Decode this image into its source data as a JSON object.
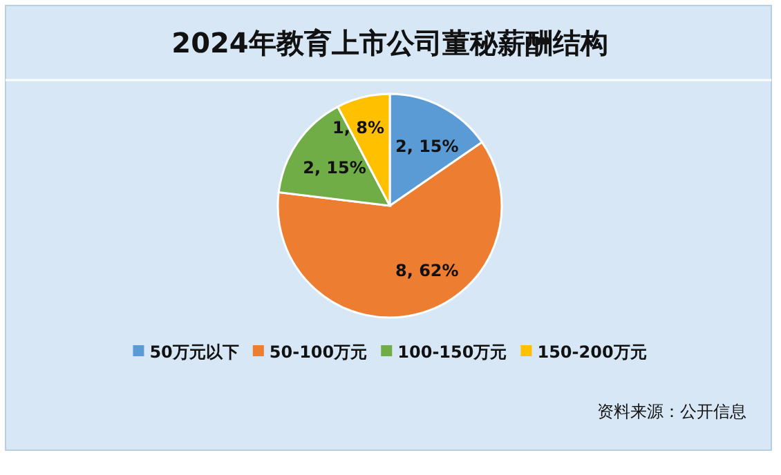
{
  "chart_data": {
    "type": "pie",
    "title": "2024年教育上市公司董秘薪酬结构",
    "categories": [
      "50万元以下",
      "50-100万元",
      "100-150万元",
      "150-200万元"
    ],
    "values": [
      2,
      8,
      2,
      1
    ],
    "colors": [
      "#5b9bd5",
      "#ed7d31",
      "#70ad47",
      "#ffc000"
    ],
    "value_labels": [
      "2, 15%",
      "8, 62%",
      "2, 15%",
      "1, 8%"
    ],
    "legend": "bottom",
    "annotations": [
      "资料来源：公开信息"
    ]
  }
}
